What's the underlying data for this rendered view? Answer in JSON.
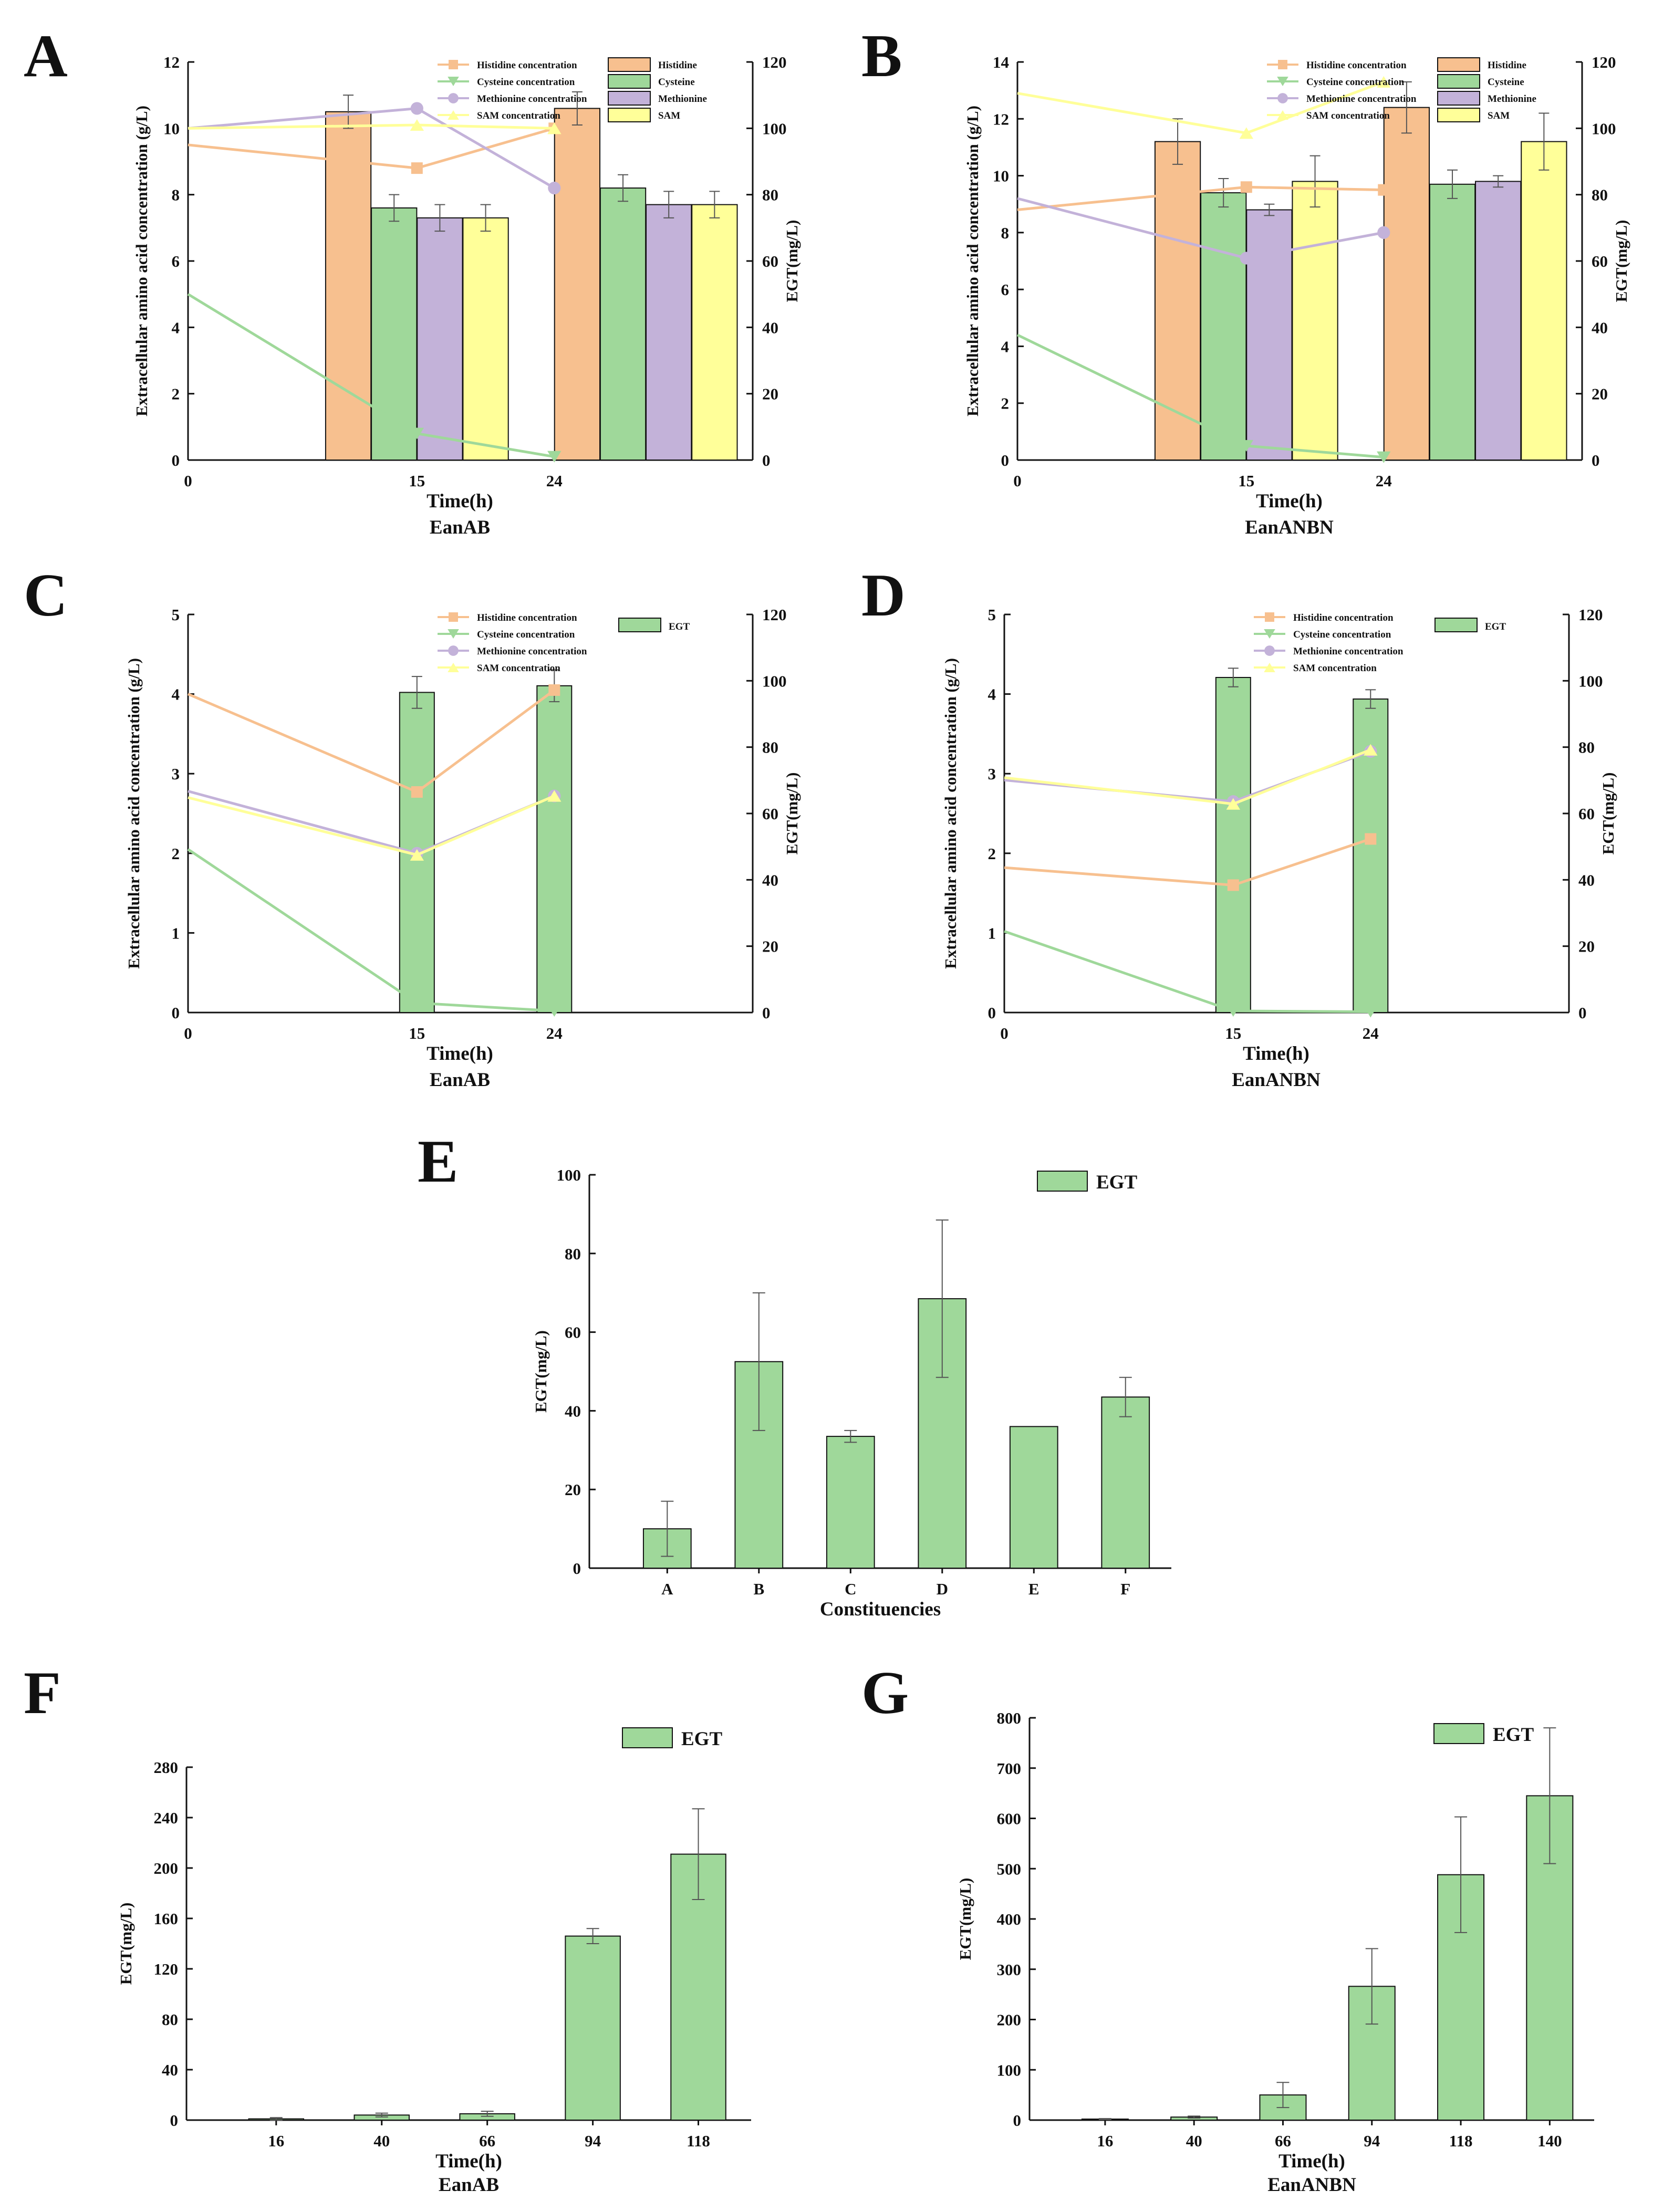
{
  "colors": {
    "histidine": "#F7C08F",
    "cysteine": "#9FD89A",
    "methionine": "#C3B2D9",
    "sam": "#FFFF99",
    "axis": "#111111",
    "error": "#555555",
    "egt": "#9FD89A"
  },
  "legend_labels": {
    "his_conc": "Histidine concentration",
    "cys_conc": "Cysteine concentration",
    "met_conc": "Methionine concentration",
    "sam_conc": "SAM concentration",
    "his": "Histidine",
    "cys": "Cysteine",
    "met": "Methionine",
    "sam": "SAM",
    "egt": "EGT"
  },
  "chart_data": [
    {
      "panel": "A",
      "type": "bar+line",
      "subtitle": "EanAB",
      "xlabel": "Time(h)",
      "ylabel": "Extracellular amino acid concentration (g/L)",
      "y2label": "EGT(mg/L)",
      "ylim": [
        0,
        12
      ],
      "yticks": [
        0,
        2,
        4,
        6,
        8,
        10,
        12
      ],
      "y2lim": [
        0,
        120
      ],
      "y2ticks": [
        0,
        20,
        40,
        60,
        80,
        100,
        120
      ],
      "xlim": [
        0,
        37
      ],
      "xticks": [
        0,
        15,
        24
      ],
      "lines": [
        {
          "key": "his_conc",
          "x": [
            0,
            15,
            24
          ],
          "y": [
            9.5,
            8.8,
            10.0
          ]
        },
        {
          "key": "cys_conc",
          "x": [
            0,
            15,
            24
          ],
          "y": [
            5.0,
            0.8,
            0.1
          ]
        },
        {
          "key": "met_conc",
          "x": [
            0,
            15,
            24
          ],
          "y": [
            10.0,
            10.6,
            8.2
          ]
        },
        {
          "key": "sam_conc",
          "x": [
            0,
            15,
            24
          ],
          "y": [
            10.0,
            10.1,
            10.0
          ]
        }
      ],
      "bar_groups": [
        {
          "bars": [
            {
              "key": "his",
              "x": 10.5,
              "value": 10.5,
              "err": 0.5
            },
            {
              "key": "cys",
              "x": 13.5,
              "value": 7.6,
              "err": 0.4
            },
            {
              "key": "met",
              "x": 16.5,
              "value": 7.3,
              "err": 0.4
            },
            {
              "key": "sam",
              "x": 19.5,
              "value": 7.3,
              "err": 0.4
            }
          ]
        },
        {
          "bars": [
            {
              "key": "his",
              "x": 25.5,
              "value": 10.6,
              "err": 0.5
            },
            {
              "key": "cys",
              "x": 28.5,
              "value": 8.2,
              "err": 0.4
            },
            {
              "key": "met",
              "x": 31.5,
              "value": 7.7,
              "err": 0.4
            },
            {
              "key": "sam",
              "x": 34.5,
              "value": 7.7,
              "err": 0.4
            }
          ]
        }
      ]
    },
    {
      "panel": "B",
      "type": "bar+line",
      "subtitle": "EanANBN",
      "xlabel": "Time(h)",
      "ylabel": "Extracellular amino acid concentration (g/L)",
      "y2label": "EGT(mg/L)",
      "ylim": [
        0,
        14
      ],
      "yticks": [
        0,
        2,
        4,
        6,
        8,
        10,
        12,
        14
      ],
      "y2lim": [
        0,
        120
      ],
      "y2ticks": [
        0,
        20,
        40,
        60,
        80,
        100,
        120
      ],
      "xlim": [
        0,
        37
      ],
      "xticks": [
        0,
        15,
        24
      ],
      "lines": [
        {
          "key": "his_conc",
          "x": [
            0,
            15,
            24
          ],
          "y": [
            8.8,
            9.6,
            9.5
          ]
        },
        {
          "key": "cys_conc",
          "x": [
            0,
            15,
            24
          ],
          "y": [
            4.4,
            0.5,
            0.1
          ]
        },
        {
          "key": "met_conc",
          "x": [
            0,
            15,
            24
          ],
          "y": [
            9.2,
            7.1,
            8.0
          ]
        },
        {
          "key": "sam_conc",
          "x": [
            0,
            15,
            24
          ],
          "y": [
            12.9,
            11.5,
            13.3
          ]
        }
      ],
      "bar_groups": [
        {
          "bars": [
            {
              "key": "his",
              "x": 10.5,
              "value": 11.2,
              "err": 0.8
            },
            {
              "key": "cys",
              "x": 13.5,
              "value": 9.4,
              "err": 0.5
            },
            {
              "key": "met",
              "x": 16.5,
              "value": 8.8,
              "err": 0.2
            },
            {
              "key": "sam",
              "x": 19.5,
              "value": 9.8,
              "err": 0.9
            }
          ]
        },
        {
          "bars": [
            {
              "key": "his",
              "x": 25.5,
              "value": 12.4,
              "err": 0.9
            },
            {
              "key": "cys",
              "x": 28.5,
              "value": 9.7,
              "err": 0.5
            },
            {
              "key": "met",
              "x": 31.5,
              "value": 9.8,
              "err": 0.2
            },
            {
              "key": "sam",
              "x": 34.5,
              "value": 11.2,
              "err": 1.0
            }
          ]
        }
      ]
    },
    {
      "panel": "C",
      "type": "bar+line",
      "subtitle": "EanAB",
      "xlabel": "Time(h)",
      "ylabel": "Extracellular amino acid concentration (g/L)",
      "y2label": "EGT(mg/L)",
      "ylim": [
        0,
        5
      ],
      "yticks": [
        0,
        1,
        2,
        3,
        4,
        5
      ],
      "y2lim": [
        0,
        120
      ],
      "y2ticks": [
        0,
        20,
        40,
        60,
        80,
        100,
        120
      ],
      "xlim": [
        0,
        37
      ],
      "xticks": [
        0,
        15,
        24
      ],
      "lines": [
        {
          "key": "his_conc",
          "x": [
            0,
            15,
            24
          ],
          "y": [
            4.0,
            2.77,
            4.05
          ]
        },
        {
          "key": "cys_conc",
          "x": [
            0,
            15,
            24
          ],
          "y": [
            2.05,
            0.12,
            0.02
          ]
        },
        {
          "key": "met_conc",
          "x": [
            0,
            15,
            24
          ],
          "y": [
            2.78,
            2.0,
            2.72
          ]
        },
        {
          "key": "sam_conc",
          "x": [
            0,
            15,
            24
          ],
          "y": [
            2.7,
            1.98,
            2.72
          ]
        }
      ],
      "bars": [
        {
          "key": "egt",
          "x": 15,
          "value": 96.5,
          "err": 4.8
        },
        {
          "key": "egt",
          "x": 24,
          "value": 98.5,
          "err": 4.8
        }
      ]
    },
    {
      "panel": "D",
      "type": "bar+line",
      "subtitle": "EanANBN",
      "xlabel": "Time(h)",
      "ylabel": "Extracellular amino acid concentration (g/L)",
      "y2label": "EGT(mg/L)",
      "ylim": [
        0,
        5
      ],
      "yticks": [
        0,
        1,
        2,
        3,
        4,
        5
      ],
      "y2lim": [
        0,
        120
      ],
      "y2ticks": [
        0,
        20,
        40,
        60,
        80,
        100,
        120
      ],
      "xlim": [
        0,
        37
      ],
      "xticks": [
        0,
        15,
        24
      ],
      "lines": [
        {
          "key": "his_conc",
          "x": [
            0,
            15,
            24
          ],
          "y": [
            1.82,
            1.6,
            2.18
          ]
        },
        {
          "key": "cys_conc",
          "x": [
            0,
            15,
            24
          ],
          "y": [
            1.02,
            0.02,
            0.01
          ]
        },
        {
          "key": "met_conc",
          "x": [
            0,
            15,
            24
          ],
          "y": [
            2.92,
            2.65,
            3.28
          ]
        },
        {
          "key": "sam_conc",
          "x": [
            0,
            15,
            24
          ],
          "y": [
            2.95,
            2.62,
            3.3
          ]
        }
      ],
      "bars": [
        {
          "key": "egt",
          "x": 15,
          "value": 101,
          "err": 2.8
        },
        {
          "key": "egt",
          "x": 24,
          "value": 94.5,
          "err": 2.8
        }
      ]
    },
    {
      "panel": "E",
      "type": "bar",
      "subtitle": "",
      "xlabel": "Constituencies",
      "ylabel": "EGT(mg/L)",
      "ylim": [
        0,
        100
      ],
      "yticks": [
        0,
        20,
        40,
        60,
        80,
        100
      ],
      "categories": [
        "A",
        "B",
        "C",
        "D",
        "E",
        "F"
      ],
      "values": [
        10,
        52.5,
        33.5,
        68.5,
        36,
        43.5
      ],
      "errors": [
        7,
        17.5,
        1.5,
        20,
        0,
        5
      ],
      "legend": "EGT"
    },
    {
      "panel": "F",
      "type": "bar",
      "subtitle": "EanAB",
      "xlabel": "Time(h)",
      "ylabel": "EGT(mg/L)",
      "ylim": [
        0,
        280
      ],
      "yticks": [
        0,
        40,
        80,
        120,
        160,
        200,
        240,
        280
      ],
      "categories": [
        "16",
        "40",
        "66",
        "94",
        "118"
      ],
      "values": [
        1,
        4,
        5,
        146,
        211
      ],
      "errors": [
        1,
        1.5,
        2,
        6,
        36
      ],
      "legend": "EGT"
    },
    {
      "panel": "G",
      "type": "bar",
      "subtitle": "EanANBN",
      "xlabel": "Time(h)",
      "ylabel": "EGT(mg/L)",
      "ylim": [
        0,
        800
      ],
      "yticks": [
        0,
        100,
        200,
        300,
        400,
        500,
        600,
        700,
        800
      ],
      "categories": [
        "16",
        "40",
        "66",
        "94",
        "118",
        "140"
      ],
      "values": [
        2,
        6,
        50,
        266,
        488,
        645
      ],
      "errors": [
        1,
        2,
        25,
        75,
        115,
        135
      ],
      "legend": "EGT"
    }
  ]
}
